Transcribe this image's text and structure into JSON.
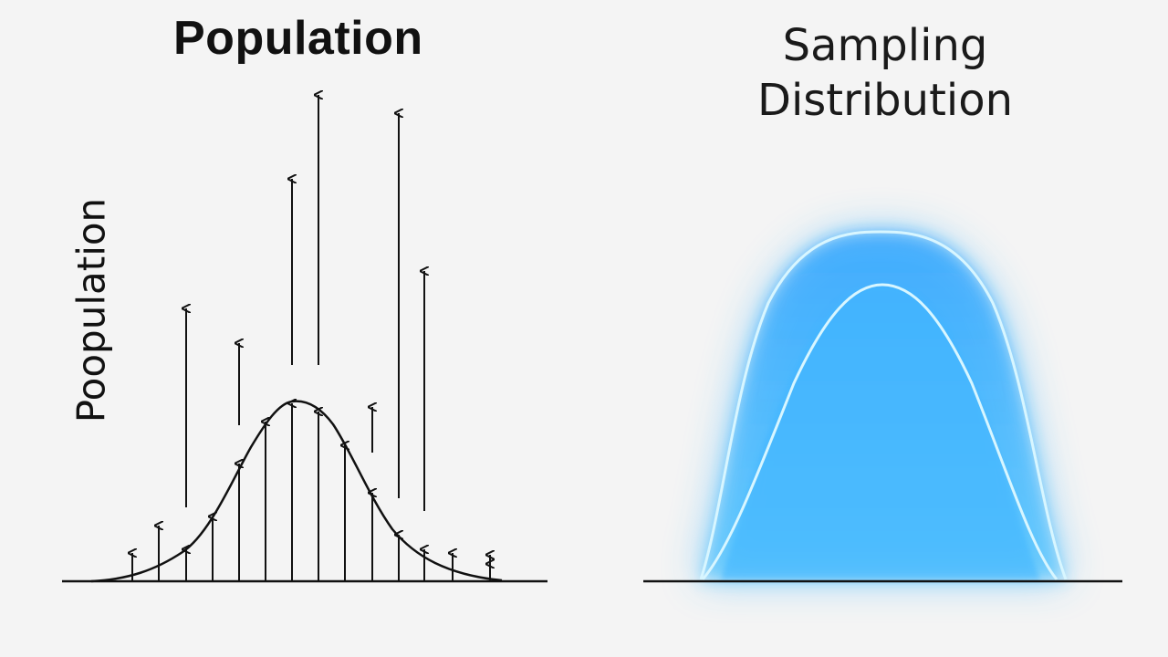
{
  "left_panel": {
    "title": "Population",
    "y_axis_label": "Poopulation"
  },
  "right_panel": {
    "title_line1": "Sampling",
    "title_line2": "Distribution"
  },
  "colors": {
    "line": "#111111",
    "glow": "#1ea0ff",
    "glow_light": "#a8e6ff",
    "background": "#f4f4f4"
  }
}
